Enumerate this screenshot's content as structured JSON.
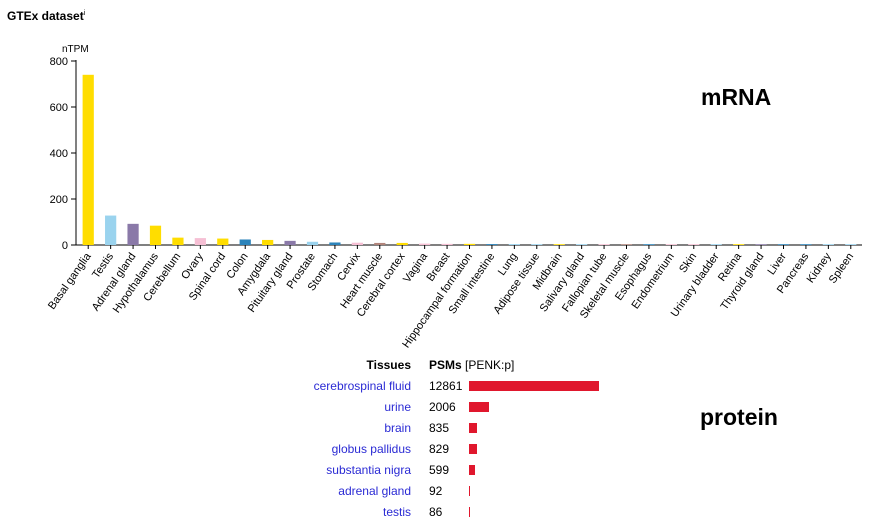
{
  "header": {
    "title": "GTEx dataset",
    "info_mark": "i"
  },
  "labels": {
    "mrna": "mRNA",
    "protein": "protein"
  },
  "colors": {
    "protein_bar": "#e0172d",
    "link": "#2a2ad4",
    "axis": "#000000"
  },
  "chart_data": {
    "type": "bar",
    "title": "",
    "ylabel": "nTPM",
    "xlabel": "",
    "ylim": [
      0,
      800
    ],
    "yticks": [
      0,
      200,
      400,
      600,
      800
    ],
    "grid": false,
    "categories": [
      "Basal ganglia",
      "Testis",
      "Adrenal gland",
      "Hypothalamus",
      "Cerebellum",
      "Ovary",
      "Spinal cord",
      "Colon",
      "Amygdala",
      "Pituitary gland",
      "Prostate",
      "Stomach",
      "Cervix",
      "Heart muscle",
      "Cerebral cortex",
      "Vagina",
      "Breast",
      "Hippocampal formation",
      "Small intestine",
      "Lung",
      "Adipose tissue",
      "Midbrain",
      "Salivary gland",
      "Fallopian tube",
      "Skeletal muscle",
      "Esophagus",
      "Endometrium",
      "Skin",
      "Urinary bladder",
      "Retina",
      "Thyroid gland",
      "Liver",
      "Pancreas",
      "Kidney",
      "Spleen"
    ],
    "values": [
      740,
      128,
      92,
      84,
      32,
      30,
      28,
      24,
      22,
      18,
      14,
      11,
      10,
      9,
      9,
      6,
      5,
      5,
      4,
      4,
      3,
      3,
      2,
      1,
      1,
      1,
      1,
      1,
      1,
      1,
      1,
      0.5,
      0.5,
      0.5,
      0.5
    ],
    "colors": [
      "#ffdd00",
      "#9ad3ee",
      "#8a79a8",
      "#ffdd00",
      "#ffdd00",
      "#f6bfd4",
      "#ffdd00",
      "#2b83ba",
      "#ffdd00",
      "#8a79a8",
      "#9ad3ee",
      "#2b83ba",
      "#f6bfd4",
      "#b0847a",
      "#ffdd00",
      "#f6bfd4",
      "#f6bfd4",
      "#ffdd00",
      "#2b83ba",
      "#9ad3ee",
      "#9ad3ee",
      "#ffdd00",
      "#9ad3ee",
      "#f6bfd4",
      "#b0847a",
      "#2b83ba",
      "#f6bfd4",
      "#f6bfd4",
      "#9ad3ee",
      "#ffdd00",
      "#8a79a8",
      "#2b83ba",
      "#2b83ba",
      "#9ad3ee",
      "#9ad3ee"
    ]
  },
  "protein": {
    "headers": {
      "tissues": "Tissues",
      "psms": "PSMs",
      "gene": "[PENK:p]"
    },
    "max_psms": 12861,
    "rows": [
      {
        "tissue": "cerebrospinal fluid",
        "psms": 12861
      },
      {
        "tissue": "urine",
        "psms": 2006
      },
      {
        "tissue": "brain",
        "psms": 835
      },
      {
        "tissue": "globus pallidus",
        "psms": 829
      },
      {
        "tissue": "substantia nigra",
        "psms": 599
      },
      {
        "tissue": "adrenal gland",
        "psms": 92
      },
      {
        "tissue": "testis",
        "psms": 86
      }
    ]
  }
}
